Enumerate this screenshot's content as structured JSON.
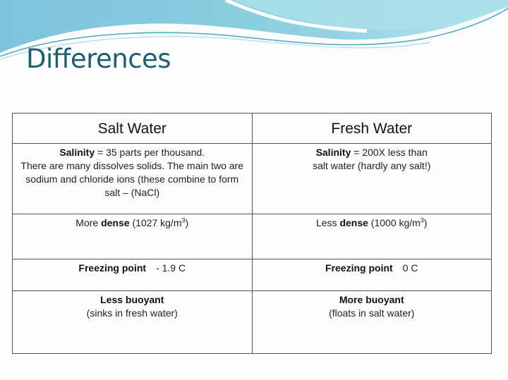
{
  "slide": {
    "title": "Differences",
    "colors": {
      "title": "#1f5f6d",
      "wave_light": "#a6dde6",
      "wave_dark": "#5fb3cf"
    }
  },
  "table": {
    "headers": [
      "Salt Water",
      "Fresh Water"
    ],
    "rows": [
      {
        "salt": {
          "bold": "Salinity",
          "text": " = 35 parts per thousand.",
          "more": "There are many dissolves solids. The main two are sodium and chloride ions (these combine to form salt – (NaCl)"
        },
        "fresh": {
          "bold": "Salinity",
          "text": " = 200X less than",
          "more": "salt water (hardly any salt!)"
        }
      },
      {
        "salt": {
          "pre": "More ",
          "bold": "dense",
          "text": " (1027 kg/m",
          "sup": "3",
          "post": ")"
        },
        "fresh": {
          "pre": "Less ",
          "bold": "dense",
          "text": " (1000 kg/m",
          "sup": "3",
          "post": ")"
        }
      },
      {
        "salt": {
          "bold": "Freezing point",
          "text": "- 1.9 C"
        },
        "fresh": {
          "bold": "Freezing point",
          "text": "0 C"
        }
      },
      {
        "salt": {
          "bold": "Less buoyant",
          "text": "(sinks in fresh water)"
        },
        "fresh": {
          "bold": "More buoyant",
          "text": "(floats in salt water)"
        }
      }
    ]
  }
}
